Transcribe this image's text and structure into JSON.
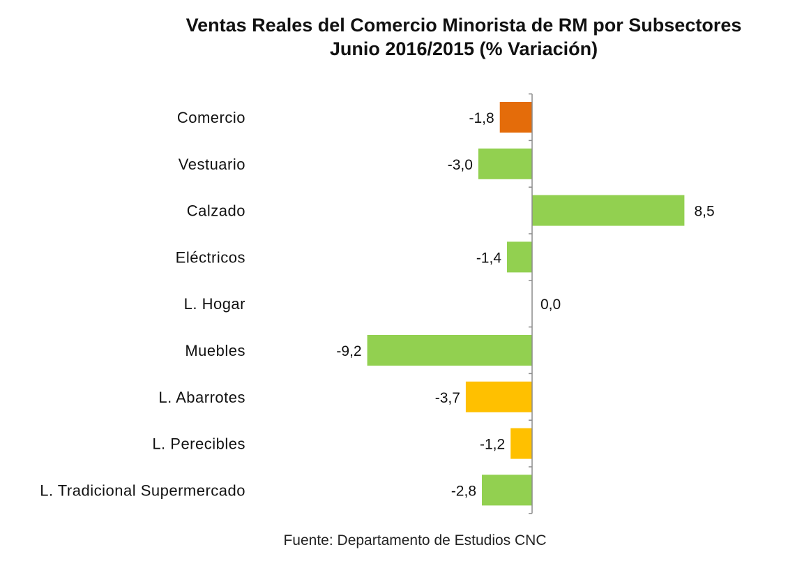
{
  "chart_data": {
    "type": "bar",
    "orientation": "horizontal",
    "title_line1": "Ventas Reales del Comercio Minorista de RM por Subsectores",
    "title_line2": "Junio  2016/2015 (% Variación)",
    "source": "Fuente: Departamento de Estudios CNC",
    "categories": [
      "Comercio",
      "Vestuario",
      "Calzado",
      "Eléctricos",
      "L. Hogar",
      "Muebles",
      "L. Abarrotes",
      "L. Perecibles",
      "L. Tradicional Supermercado"
    ],
    "values": [
      -1.8,
      -3.0,
      8.5,
      -1.4,
      0.0,
      -9.2,
      -3.7,
      -1.2,
      -2.8
    ],
    "value_labels": [
      "-1,8",
      "-3,0",
      "8,5",
      "-1,4",
      "0,0",
      "-9,2",
      "-3,7",
      "-1,2",
      "-2,8"
    ],
    "colors": [
      "#E46C0A",
      "#92D050",
      "#92D050",
      "#92D050",
      "#92D050",
      "#92D050",
      "#FFC000",
      "#FFC000",
      "#92D050"
    ],
    "xlim": [
      -9.2,
      8.5
    ],
    "grid": false,
    "legend": "none"
  }
}
